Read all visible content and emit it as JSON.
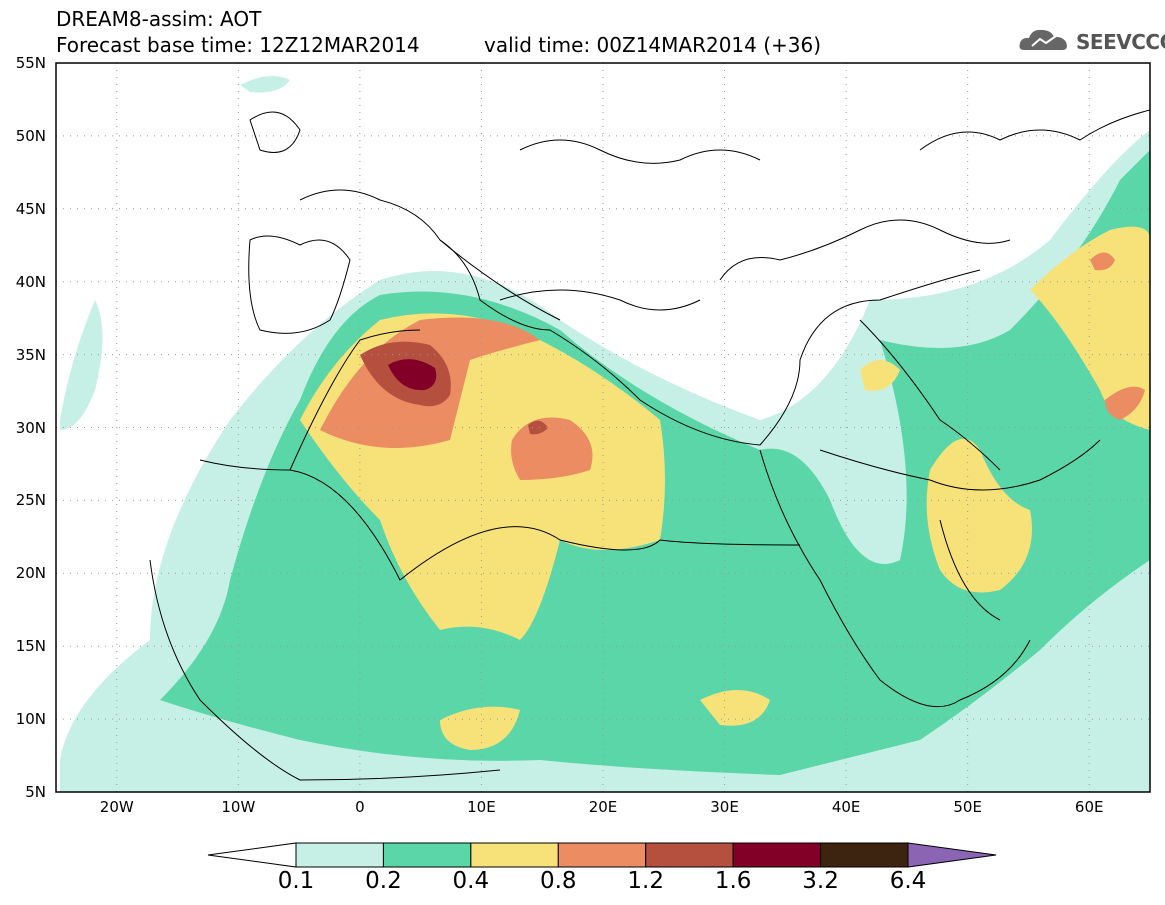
{
  "title": {
    "line1": "DREAM8-assim: AOT",
    "line2": "Forecast base time: 12Z12MAR2014",
    "line3": "valid time: 00Z14MAR2014 (+36)"
  },
  "logo": {
    "text": "SEEVCCC",
    "icon": "cloud-icon"
  },
  "axes": {
    "lat_labels": [
      "55N",
      "50N",
      "45N",
      "40N",
      "35N",
      "30N",
      "25N",
      "20N",
      "15N",
      "10N",
      "5N"
    ],
    "lon_labels": [
      "20W",
      "10W",
      "0",
      "10E",
      "20E",
      "30E",
      "40E",
      "50E",
      "60E"
    ],
    "lat_range": [
      5,
      55
    ],
    "lon_range": [
      -25,
      65
    ],
    "grid": true
  },
  "colorbar": {
    "labels": [
      "0.1",
      "0.2",
      "0.4",
      "0.8",
      "1.2",
      "1.6",
      "3.2",
      "6.4"
    ],
    "colors": [
      "#ffffff",
      "#c6f0e6",
      "#5ad6a8",
      "#f7e27a",
      "#eb8c62",
      "#b5503e",
      "#820028",
      "#3d2410",
      "#8c64b4"
    ]
  },
  "field_colors": {
    "c1": "#c6f0e6",
    "c2": "#5ad6a8",
    "c3": "#f7e27a",
    "c4": "#eb8c62",
    "c5": "#b5503e",
    "c6": "#820028"
  }
}
